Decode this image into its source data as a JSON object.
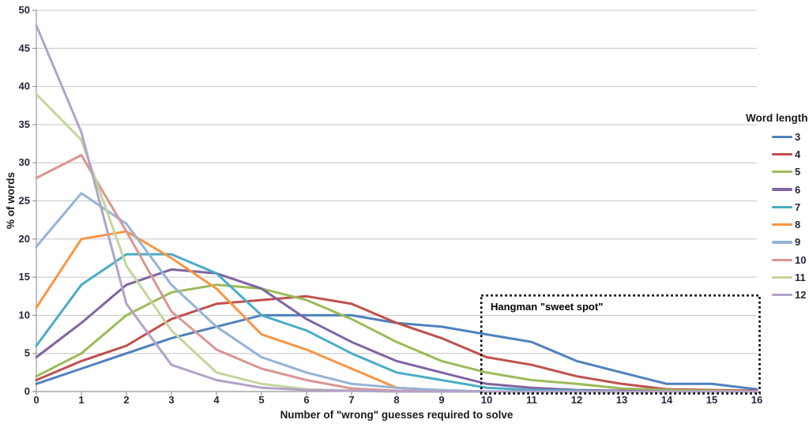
{
  "chart_data": {
    "type": "line",
    "title": "",
    "xlabel": "Number of \"wrong\" guesses required to solve",
    "ylabel": "% of words",
    "legend_title": "Word length",
    "legend_position": "right",
    "grid": true,
    "xlim": [
      0,
      16
    ],
    "ylim": [
      0,
      50
    ],
    "x_tick_step": 1,
    "y_tick_step": 5,
    "x": [
      0,
      1,
      2,
      3,
      4,
      5,
      6,
      7,
      8,
      9,
      10,
      11,
      12,
      13,
      14,
      15,
      16
    ],
    "series": [
      {
        "name": "3",
        "color": "#4F81BD",
        "values": [
          1,
          3,
          5,
          7,
          8.5,
          10,
          10,
          10,
          9,
          8.5,
          7.5,
          6.5,
          4,
          2.5,
          1,
          1,
          0.3
        ]
      },
      {
        "name": "4",
        "color": "#C0504D",
        "values": [
          1.5,
          4,
          6,
          9.5,
          11.5,
          12,
          12.5,
          11.5,
          9,
          7,
          4.5,
          3.5,
          2,
          1,
          0.3,
          0.2,
          0.1
        ]
      },
      {
        "name": "5",
        "color": "#9BBB59",
        "values": [
          2,
          5,
          10,
          13,
          14,
          13.5,
          12,
          9.5,
          6.5,
          4,
          2.5,
          1.5,
          1,
          0.4,
          0.2,
          0.1,
          0
        ]
      },
      {
        "name": "6",
        "color": "#8064A2",
        "values": [
          4.5,
          9,
          14,
          16,
          15.5,
          13.5,
          9.5,
          6.5,
          4,
          2.5,
          1,
          0.5,
          0.2,
          0.1,
          0,
          0,
          0
        ]
      },
      {
        "name": "7",
        "color": "#4BACC6",
        "values": [
          6,
          14,
          18,
          18,
          15.5,
          10,
          8,
          5,
          2.5,
          1.5,
          0.5,
          0.2,
          0.1,
          0,
          0,
          0,
          0
        ]
      },
      {
        "name": "8",
        "color": "#F79646",
        "values": [
          11,
          20,
          21,
          17.5,
          13.5,
          7.5,
          5.5,
          3,
          0.5,
          0.1,
          0,
          0,
          0,
          0,
          0,
          0,
          0
        ]
      },
      {
        "name": "9",
        "color": "#95B3D7",
        "values": [
          19,
          26,
          22,
          14,
          8.5,
          4.5,
          2.5,
          1,
          0.5,
          0.2,
          0,
          0,
          0,
          0,
          0,
          0,
          0
        ]
      },
      {
        "name": "10",
        "color": "#D99694",
        "values": [
          28,
          31,
          21,
          10.5,
          5.5,
          3,
          1.5,
          0.4,
          0.1,
          0,
          0,
          0,
          0,
          0,
          0,
          0,
          0
        ]
      },
      {
        "name": "11",
        "color": "#C3D69B",
        "values": [
          39,
          33,
          16.5,
          8,
          2.5,
          1,
          0.3,
          0.1,
          0,
          0,
          0,
          0,
          0,
          0,
          0,
          0,
          0
        ]
      },
      {
        "name": "12",
        "color": "#B3A2C7",
        "values": [
          48,
          34,
          11.5,
          3.5,
          1.5,
          0.5,
          0.2,
          0.1,
          0,
          0,
          0,
          0,
          0,
          0,
          0,
          0,
          0
        ]
      }
    ],
    "annotation": {
      "label": "Hangman  \"sweet spot\"",
      "x_range": [
        9.88,
        16.06
      ],
      "y_range": [
        -0.25,
        12.6
      ]
    }
  },
  "style_colors": {
    "gridline": "#C6C6C6",
    "axis": "#989898",
    "tick_text": "#26263a",
    "annotation_border": "#000000"
  }
}
